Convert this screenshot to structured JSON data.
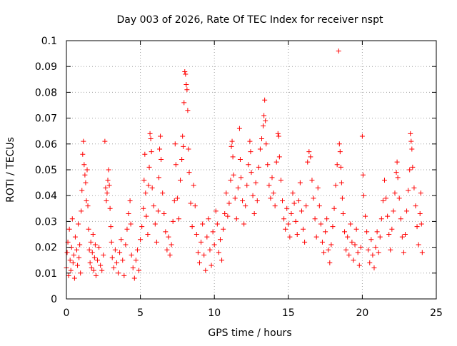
{
  "chart_data": {
    "type": "scatter",
    "title": "Day 003 of 2026, Rate Of TEC Index for receiver nspt",
    "xlabel": "GPS time / hours",
    "ylabel": "ROTI / TECUs",
    "xlim": [
      0,
      25
    ],
    "ylim": [
      0,
      0.1
    ],
    "x_ticks": [
      "0",
      "5",
      "10",
      "15",
      "20",
      "25"
    ],
    "y_ticks": [
      "0",
      "0.01",
      "0.02",
      "0.03",
      "0.04",
      "0.05",
      "0.06",
      "0.07",
      "0.08",
      "0.09",
      "0.1"
    ],
    "grid": true,
    "marker": "+",
    "color": "#ff0000",
    "series": [
      {
        "points": [
          [
            0.0,
            0.012
          ],
          [
            0.05,
            0.018
          ],
          [
            0.1,
            0.022
          ],
          [
            0.15,
            0.009
          ],
          [
            0.2,
            0.027
          ],
          [
            0.25,
            0.015
          ],
          [
            0.3,
            0.011
          ],
          [
            0.35,
            0.02
          ],
          [
            0.4,
            0.031
          ],
          [
            0.45,
            0.014
          ],
          [
            0.5,
            0.017
          ],
          [
            0.55,
            0.008
          ],
          [
            0.6,
            0.024
          ],
          [
            0.7,
            0.019
          ],
          [
            0.75,
            0.013
          ],
          [
            0.8,
            0.029
          ],
          [
            0.85,
            0.016
          ],
          [
            0.9,
            0.021
          ],
          [
            0.95,
            0.01
          ],
          [
            1.0,
            0.034
          ],
          [
            1.05,
            0.042
          ],
          [
            1.1,
            0.056
          ],
          [
            1.15,
            0.061
          ],
          [
            1.2,
            0.052
          ],
          [
            1.25,
            0.048
          ],
          [
            1.3,
            0.045
          ],
          [
            1.35,
            0.038
          ],
          [
            1.4,
            0.05
          ],
          [
            1.45,
            0.036
          ],
          [
            1.5,
            0.027
          ],
          [
            1.55,
            0.019
          ],
          [
            1.6,
            0.014
          ],
          [
            1.65,
            0.022
          ],
          [
            1.7,
            0.012
          ],
          [
            1.75,
            0.018
          ],
          [
            1.8,
            0.025
          ],
          [
            1.85,
            0.011
          ],
          [
            1.9,
            0.016
          ],
          [
            1.95,
            0.021
          ],
          [
            2.0,
            0.009
          ],
          [
            2.1,
            0.015
          ],
          [
            2.2,
            0.02
          ],
          [
            2.3,
            0.013
          ],
          [
            2.4,
            0.011
          ],
          [
            2.5,
            0.017
          ],
          [
            2.6,
            0.061
          ],
          [
            2.65,
            0.043
          ],
          [
            2.7,
            0.038
          ],
          [
            2.75,
            0.041
          ],
          [
            2.8,
            0.046
          ],
          [
            2.85,
            0.05
          ],
          [
            2.9,
            0.044
          ],
          [
            2.95,
            0.035
          ],
          [
            3.0,
            0.028
          ],
          [
            3.05,
            0.022
          ],
          [
            3.1,
            0.016
          ],
          [
            3.2,
            0.012
          ],
          [
            3.3,
            0.019
          ],
          [
            3.4,
            0.014
          ],
          [
            3.5,
            0.01
          ],
          [
            3.6,
            0.018
          ],
          [
            3.7,
            0.023
          ],
          [
            3.8,
            0.015
          ],
          [
            3.9,
            0.009
          ],
          [
            4.0,
            0.021
          ],
          [
            4.1,
            0.027
          ],
          [
            4.2,
            0.033
          ],
          [
            4.3,
            0.038
          ],
          [
            4.35,
            0.029
          ],
          [
            4.4,
            0.017
          ],
          [
            4.5,
            0.012
          ],
          [
            4.6,
            0.008
          ],
          [
            4.7,
            0.015
          ],
          [
            4.8,
            0.019
          ],
          [
            4.9,
            0.011
          ],
          [
            5.0,
            0.023
          ],
          [
            5.1,
            0.028
          ],
          [
            5.2,
            0.035
          ],
          [
            5.25,
            0.046
          ],
          [
            5.3,
            0.056
          ],
          [
            5.35,
            0.041
          ],
          [
            5.4,
            0.032
          ],
          [
            5.5,
            0.025
          ],
          [
            5.55,
            0.044
          ],
          [
            5.6,
            0.051
          ],
          [
            5.65,
            0.064
          ],
          [
            5.7,
            0.062
          ],
          [
            5.75,
            0.057
          ],
          [
            5.8,
            0.043
          ],
          [
            5.9,
            0.036
          ],
          [
            6.0,
            0.029
          ],
          [
            6.1,
            0.022
          ],
          [
            6.2,
            0.034
          ],
          [
            6.25,
            0.047
          ],
          [
            6.3,
            0.058
          ],
          [
            6.35,
            0.063
          ],
          [
            6.4,
            0.054
          ],
          [
            6.5,
            0.041
          ],
          [
            6.6,
            0.033
          ],
          [
            6.7,
            0.026
          ],
          [
            6.8,
            0.019
          ],
          [
            6.9,
            0.024
          ],
          [
            7.0,
            0.017
          ],
          [
            7.1,
            0.021
          ],
          [
            7.2,
            0.03
          ],
          [
            7.3,
            0.038
          ],
          [
            7.35,
            0.06
          ],
          [
            7.4,
            0.052
          ],
          [
            7.5,
            0.039
          ],
          [
            7.6,
            0.031
          ],
          [
            7.7,
            0.046
          ],
          [
            7.8,
            0.054
          ],
          [
            7.85,
            0.063
          ],
          [
            7.9,
            0.059
          ],
          [
            7.95,
            0.076
          ],
          [
            8.0,
            0.088
          ],
          [
            8.05,
            0.087
          ],
          [
            8.1,
            0.083
          ],
          [
            8.15,
            0.081
          ],
          [
            8.2,
            0.073
          ],
          [
            8.25,
            0.058
          ],
          [
            8.3,
            0.049
          ],
          [
            8.4,
            0.037
          ],
          [
            8.5,
            0.028
          ],
          [
            8.6,
            0.044
          ],
          [
            8.7,
            0.036
          ],
          [
            8.8,
            0.025
          ],
          [
            8.9,
            0.018
          ],
          [
            9.0,
            0.014
          ],
          [
            9.1,
            0.022
          ],
          [
            9.2,
            0.029
          ],
          [
            9.3,
            0.017
          ],
          [
            9.4,
            0.011
          ],
          [
            9.5,
            0.024
          ],
          [
            9.6,
            0.031
          ],
          [
            9.7,
            0.019
          ],
          [
            9.8,
            0.013
          ],
          [
            9.9,
            0.026
          ],
          [
            10.0,
            0.021
          ],
          [
            10.1,
            0.034
          ],
          [
            10.2,
            0.029
          ],
          [
            10.3,
            0.018
          ],
          [
            10.4,
            0.023
          ],
          [
            10.5,
            0.015
          ],
          [
            10.6,
            0.027
          ],
          [
            10.7,
            0.033
          ],
          [
            10.8,
            0.041
          ],
          [
            10.9,
            0.032
          ],
          [
            11.0,
            0.037
          ],
          [
            11.1,
            0.046
          ],
          [
            11.15,
            0.059
          ],
          [
            11.2,
            0.061
          ],
          [
            11.25,
            0.055
          ],
          [
            11.3,
            0.048
          ],
          [
            11.4,
            0.039
          ],
          [
            11.5,
            0.031
          ],
          [
            11.6,
            0.043
          ],
          [
            11.7,
            0.066
          ],
          [
            11.75,
            0.054
          ],
          [
            11.8,
            0.047
          ],
          [
            11.9,
            0.038
          ],
          [
            12.0,
            0.029
          ],
          [
            12.1,
            0.036
          ],
          [
            12.2,
            0.044
          ],
          [
            12.3,
            0.052
          ],
          [
            12.4,
            0.061
          ],
          [
            12.45,
            0.057
          ],
          [
            12.5,
            0.049
          ],
          [
            12.6,
            0.04
          ],
          [
            12.7,
            0.033
          ],
          [
            12.8,
            0.045
          ],
          [
            12.9,
            0.038
          ],
          [
            13.0,
            0.051
          ],
          [
            13.1,
            0.058
          ],
          [
            13.2,
            0.062
          ],
          [
            13.3,
            0.067
          ],
          [
            13.35,
            0.071
          ],
          [
            13.4,
            0.077
          ],
          [
            13.45,
            0.069
          ],
          [
            13.5,
            0.06
          ],
          [
            13.6,
            0.052
          ],
          [
            13.7,
            0.044
          ],
          [
            13.8,
            0.039
          ],
          [
            13.9,
            0.047
          ],
          [
            14.0,
            0.041
          ],
          [
            14.1,
            0.036
          ],
          [
            14.2,
            0.053
          ],
          [
            14.3,
            0.064
          ],
          [
            14.35,
            0.063
          ],
          [
            14.4,
            0.055
          ],
          [
            14.5,
            0.046
          ],
          [
            14.6,
            0.038
          ],
          [
            14.7,
            0.031
          ],
          [
            14.8,
            0.027
          ],
          [
            14.9,
            0.035
          ],
          [
            15.0,
            0.029
          ],
          [
            15.1,
            0.024
          ],
          [
            15.2,
            0.033
          ],
          [
            15.3,
            0.041
          ],
          [
            15.4,
            0.037
          ],
          [
            15.5,
            0.03
          ],
          [
            15.6,
            0.025
          ],
          [
            15.7,
            0.038
          ],
          [
            15.8,
            0.045
          ],
          [
            15.9,
            0.034
          ],
          [
            16.0,
            0.027
          ],
          [
            16.1,
            0.022
          ],
          [
            16.2,
            0.036
          ],
          [
            16.3,
            0.053
          ],
          [
            16.4,
            0.057
          ],
          [
            16.5,
            0.055
          ],
          [
            16.6,
            0.046
          ],
          [
            16.7,
            0.039
          ],
          [
            16.8,
            0.031
          ],
          [
            16.9,
            0.024
          ],
          [
            17.0,
            0.043
          ],
          [
            17.1,
            0.036
          ],
          [
            17.2,
            0.029
          ],
          [
            17.3,
            0.022
          ],
          [
            17.4,
            0.018
          ],
          [
            17.5,
            0.026
          ],
          [
            17.6,
            0.031
          ],
          [
            17.7,
            0.019
          ],
          [
            17.8,
            0.014
          ],
          [
            17.9,
            0.021
          ],
          [
            18.0,
            0.028
          ],
          [
            18.1,
            0.035
          ],
          [
            18.2,
            0.044
          ],
          [
            18.3,
            0.052
          ],
          [
            18.4,
            0.096
          ],
          [
            18.45,
            0.06
          ],
          [
            18.5,
            0.057
          ],
          [
            18.55,
            0.051
          ],
          [
            18.6,
            0.045
          ],
          [
            18.65,
            0.039
          ],
          [
            18.7,
            0.033
          ],
          [
            18.8,
            0.026
          ],
          [
            18.9,
            0.019
          ],
          [
            19.0,
            0.024
          ],
          [
            19.1,
            0.017
          ],
          [
            19.2,
            0.029
          ],
          [
            19.3,
            0.022
          ],
          [
            19.4,
            0.015
          ],
          [
            19.5,
            0.021
          ],
          [
            19.6,
            0.027
          ],
          [
            19.7,
            0.018
          ],
          [
            19.8,
            0.013
          ],
          [
            19.9,
            0.02
          ],
          [
            20.0,
            0.063
          ],
          [
            20.05,
            0.048
          ],
          [
            20.1,
            0.04
          ],
          [
            20.2,
            0.032
          ],
          [
            20.3,
            0.026
          ],
          [
            20.4,
            0.019
          ],
          [
            20.5,
            0.014
          ],
          [
            20.6,
            0.023
          ],
          [
            20.7,
            0.017
          ],
          [
            20.8,
            0.012
          ],
          [
            20.9,
            0.02
          ],
          [
            21.0,
            0.026
          ],
          [
            21.1,
            0.018
          ],
          [
            21.2,
            0.024
          ],
          [
            21.3,
            0.031
          ],
          [
            21.4,
            0.038
          ],
          [
            21.5,
            0.046
          ],
          [
            21.6,
            0.039
          ],
          [
            21.7,
            0.032
          ],
          [
            21.8,
            0.025
          ],
          [
            21.9,
            0.019
          ],
          [
            22.0,
            0.027
          ],
          [
            22.1,
            0.034
          ],
          [
            22.2,
            0.041
          ],
          [
            22.3,
            0.049
          ],
          [
            22.35,
            0.053
          ],
          [
            22.4,
            0.047
          ],
          [
            22.5,
            0.039
          ],
          [
            22.6,
            0.031
          ],
          [
            22.7,
            0.024
          ],
          [
            22.8,
            0.018
          ],
          [
            22.9,
            0.025
          ],
          [
            23.0,
            0.034
          ],
          [
            23.1,
            0.042
          ],
          [
            23.2,
            0.05
          ],
          [
            23.25,
            0.064
          ],
          [
            23.3,
            0.061
          ],
          [
            23.35,
            0.058
          ],
          [
            23.4,
            0.051
          ],
          [
            23.5,
            0.043
          ],
          [
            23.6,
            0.036
          ],
          [
            23.7,
            0.028
          ],
          [
            23.8,
            0.021
          ],
          [
            23.9,
            0.033
          ],
          [
            23.95,
            0.041
          ],
          [
            24.0,
            0.029
          ],
          [
            24.05,
            0.018
          ]
        ]
      }
    ]
  }
}
